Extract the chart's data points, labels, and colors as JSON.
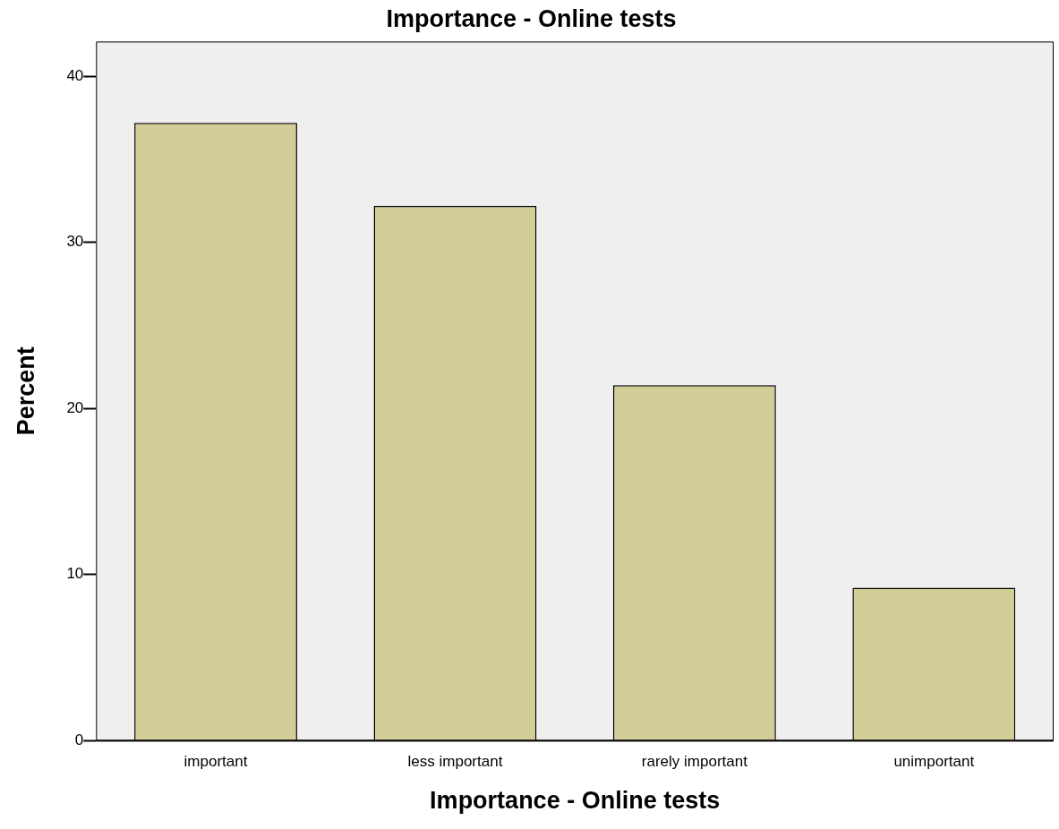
{
  "chart_data": {
    "type": "bar",
    "title": "Importance - Online tests",
    "xlabel": "Importance - Online tests",
    "ylabel": "Percent",
    "categories": [
      "important",
      "less important",
      "rarely important",
      "unimportant"
    ],
    "values": [
      37.2,
      32.2,
      21.4,
      9.2
    ],
    "color": "#d3ce97",
    "ylim": [
      0,
      42.1
    ],
    "yticks": [
      0,
      10,
      20,
      30,
      40
    ],
    "grid": false,
    "legend": false
  }
}
